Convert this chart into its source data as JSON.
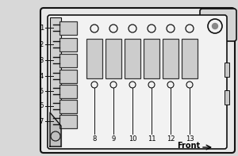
{
  "bg_color": "#d8d8d8",
  "panel_fill": "#e0e0e0",
  "panel_outline": "#111111",
  "fuse_fill": "#cccccc",
  "fuse_outline": "#333333",
  "inner_fill": "#f2f2f2",
  "small_fuses": [
    {
      "label": "1"
    },
    {
      "label": "2"
    },
    {
      "label": "3"
    },
    {
      "label": "4"
    },
    {
      "label": "5"
    },
    {
      "label": "6"
    },
    {
      "label": "7"
    }
  ],
  "large_fuses": [
    {
      "label": "8"
    },
    {
      "label": "9"
    },
    {
      "label": "10"
    },
    {
      "label": "11"
    },
    {
      "label": "12"
    },
    {
      "label": "13"
    }
  ],
  "front_text": "Front",
  "watermark_color": "#cccccc"
}
